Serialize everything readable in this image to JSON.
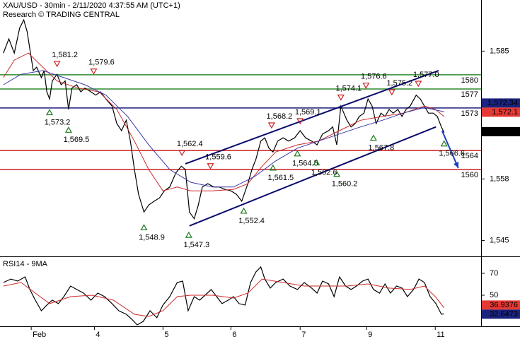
{
  "chart_data": [
    {
      "type": "line",
      "title": "XAU/USD - 30min - 2/11/2020 4:37:55 AM (UTC+1)",
      "subtitle": "Research © TRADING CENTRAL",
      "xlim": [
        -0.46,
        6.625
      ],
      "ylim": [
        1541.8,
        1595.8
      ],
      "yticks": [
        {
          "value": 1545,
          "label": "1,545"
        },
        {
          "value": 1558,
          "label": "1,558"
        },
        {
          "value": 1585,
          "label": "1,585"
        }
      ],
      "series": [
        {
          "color": "#000000",
          "x": [
            -0.41,
            -0.33,
            -0.25,
            -0.17,
            -0.11,
            -0.06,
            -0.02,
            0.03,
            0.08,
            0.15,
            0.19,
            0.23,
            0.27,
            0.31,
            0.38,
            0.44,
            0.5,
            0.55,
            0.6,
            0.67,
            0.73,
            0.79,
            0.88,
            0.95,
            1.02,
            1.1,
            1.19,
            1.26,
            1.33,
            1.4,
            1.46,
            1.52,
            1.58,
            1.66,
            1.73,
            1.81,
            1.89,
            1.96,
            2.04,
            2.13,
            2.21,
            2.27,
            2.33,
            2.4,
            2.46,
            2.52,
            2.6,
            2.69,
            2.77,
            2.85,
            2.94,
            3.02,
            3.1,
            3.19,
            3.25,
            3.31,
            3.38,
            3.44,
            3.5,
            3.56,
            3.63,
            3.71,
            3.79,
            3.88,
            3.96,
            4.04,
            4.13,
            4.21,
            4.29,
            4.38,
            4.44,
            4.5,
            4.56,
            4.65,
            4.71,
            4.77,
            4.83,
            4.9,
            4.96,
            5.02,
            5.08,
            5.15,
            5.21,
            5.27,
            5.33,
            5.4,
            5.46,
            5.52,
            5.58,
            5.67,
            5.73,
            5.79,
            5.85,
            5.92,
            5.98,
            6.04,
            6.08
          ],
          "values": [
            1584.6,
            1587.6,
            1584.6,
            1589.9,
            1591.6,
            1589.1,
            1585.4,
            1580.9,
            1581.6,
            1579.4,
            1580.9,
            1576.4,
            1574.9,
            1578.7,
            1580.1,
            1577.9,
            1578.7,
            1572.7,
            1577.2,
            1577.9,
            1576.4,
            1577.2,
            1576.4,
            1575.7,
            1576.4,
            1574.9,
            1573.4,
            1569.7,
            1568.2,
            1570.4,
            1566.0,
            1560.0,
            1554.8,
            1551.0,
            1552.5,
            1553.3,
            1554.0,
            1555.5,
            1556.3,
            1559.3,
            1560.7,
            1560.0,
            1551.0,
            1549.6,
            1552.5,
            1556.3,
            1557.0,
            1556.3,
            1556.3,
            1555.8,
            1555.5,
            1554.8,
            1553.3,
            1557.0,
            1560.0,
            1562.2,
            1566.0,
            1566.7,
            1564.5,
            1563.7,
            1566.0,
            1566.7,
            1566.0,
            1566.7,
            1568.2,
            1566.7,
            1566.0,
            1565.2,
            1567.5,
            1568.2,
            1569.0,
            1565.2,
            1573.4,
            1570.4,
            1569.0,
            1569.7,
            1571.2,
            1571.9,
            1574.9,
            1573.4,
            1569.7,
            1571.9,
            1571.2,
            1572.7,
            1571.9,
            1572.7,
            1571.2,
            1572.7,
            1573.4,
            1575.7,
            1574.9,
            1573.4,
            1571.9,
            1571.9,
            1571.2,
            1569.0,
            1567.8
          ]
        },
        {
          "color": "#cc2a2a",
          "x": [
            -0.41,
            -0.25,
            -0.04,
            0.17,
            0.38,
            0.69,
            1.0,
            1.26,
            1.52,
            1.73,
            1.94,
            2.15,
            2.35,
            2.67,
            2.98,
            3.19,
            3.4,
            3.6,
            3.92,
            4.23,
            4.54,
            4.85,
            5.17,
            5.48,
            5.79,
            5.95,
            6.08
          ],
          "values": [
            1579.4,
            1583.1,
            1584.6,
            1581.6,
            1578.7,
            1577.2,
            1576.4,
            1572.7,
            1566.0,
            1560.0,
            1555.5,
            1556.3,
            1555.5,
            1555.5,
            1555.8,
            1557.0,
            1560.7,
            1563.7,
            1565.2,
            1566.0,
            1568.2,
            1570.4,
            1571.2,
            1571.9,
            1573.4,
            1572.7,
            1571.2
          ]
        },
        {
          "color": "#3a3aa8",
          "x": [
            -0.41,
            -0.15,
            0.17,
            0.48,
            0.79,
            1.1,
            1.42,
            1.73,
            2.04,
            2.35,
            2.67,
            2.98,
            3.29,
            3.6,
            3.92,
            4.23,
            4.54,
            4.85,
            5.17,
            5.48,
            5.79,
            6.08
          ],
          "values": [
            1577.9,
            1580.1,
            1580.9,
            1579.4,
            1577.9,
            1575.7,
            1571.2,
            1565.2,
            1560.0,
            1557.3,
            1556.3,
            1556.3,
            1558.5,
            1561.8,
            1564.5,
            1566.0,
            1567.5,
            1569.0,
            1570.4,
            1571.9,
            1573.1,
            1572.2
          ]
        }
      ],
      "levels": [
        {
          "value": 1580,
          "color": "#2e8b2e"
        },
        {
          "value": 1577,
          "color": "#2e8b2e"
        },
        {
          "value": 1573,
          "color": "#1a1a7a"
        },
        {
          "value": 1564,
          "color": "#cc2222"
        },
        {
          "value": 1560,
          "color": "#cc2222"
        }
      ],
      "trendlines": [
        {
          "x": [
            2.27,
            6.0
          ],
          "values": [
            1561.2,
            1580.9
          ],
          "color": "#0a0a6e"
        },
        {
          "x": [
            2.33,
            5.96
          ],
          "values": [
            1548.1,
            1569.0
          ],
          "color": "#0a0a6e"
        },
        {
          "x": [
            6.05,
            6.29
          ],
          "values": [
            1568.2,
            1560.3
          ],
          "color": "#1f3fbf",
          "arrow": true
        }
      ],
      "pivots": [
        {
          "x": 0.38,
          "value": 1581.2,
          "label": "1,581.2",
          "dir": "high"
        },
        {
          "x": 0.92,
          "value": 1579.6,
          "label": "1,579.6",
          "dir": "high"
        },
        {
          "x": 0.27,
          "value": 1573.2,
          "label": "1,573.2",
          "dir": "low"
        },
        {
          "x": 0.55,
          "value": 1569.5,
          "label": "1,569.5",
          "dir": "low"
        },
        {
          "x": 1.66,
          "value": 1548.9,
          "label": "1,548.9",
          "dir": "low"
        },
        {
          "x": 2.22,
          "value": 1562.4,
          "label": "1,562.4",
          "dir": "high"
        },
        {
          "x": 2.64,
          "value": 1559.6,
          "label": "1,559.6",
          "dir": "high"
        },
        {
          "x": 2.32,
          "value": 1547.3,
          "label": "1,547.3",
          "dir": "low"
        },
        {
          "x": 3.13,
          "value": 1552.4,
          "label": "1,552.4",
          "dir": "low"
        },
        {
          "x": 3.56,
          "value": 1561.5,
          "label": "1,561.5",
          "dir": "low"
        },
        {
          "x": 3.54,
          "value": 1568.2,
          "label": "1,568.2",
          "dir": "high"
        },
        {
          "x": 3.96,
          "value": 1569.1,
          "label": "1,569.1",
          "dir": "high"
        },
        {
          "x": 3.92,
          "value": 1564.5,
          "label": "1,564.5",
          "dir": "low"
        },
        {
          "x": 4.2,
          "value": 1562.6,
          "label": "1,562.6",
          "dir": "low"
        },
        {
          "x": 4.5,
          "value": 1560.2,
          "label": "1,560.2",
          "dir": "low"
        },
        {
          "x": 4.56,
          "value": 1574.1,
          "label": "1,574.1",
          "dir": "high"
        },
        {
          "x": 4.93,
          "value": 1576.6,
          "label": "1,576.6",
          "dir": "high"
        },
        {
          "x": 5.04,
          "value": 1567.8,
          "label": "1,567.8",
          "dir": "low"
        },
        {
          "x": 5.31,
          "value": 1575.2,
          "label": "1,575.2",
          "dir": "high"
        },
        {
          "x": 5.7,
          "value": 1577.0,
          "label": "1,577.0",
          "dir": "high"
        },
        {
          "x": 6.08,
          "value": 1566.6,
          "label": "1,566.6",
          "dir": "low"
        }
      ],
      "price_labels": [
        {
          "value": 1572.34,
          "label": "1,572.34",
          "color": "#1a237e"
        },
        {
          "value": 1572.1,
          "label": "1,572.1",
          "color": "#e53935"
        },
        {
          "value": 1568,
          "label": "1,568",
          "color": "#000000"
        }
      ]
    },
    {
      "type": "line",
      "title": "RSI14 - 9MA",
      "xlim": [
        -0.46,
        6.625
      ],
      "xticks": [
        {
          "value": 0,
          "label": "Feb"
        },
        {
          "value": 0.93,
          "label": "4"
        },
        {
          "value": 1.94,
          "label": "5"
        },
        {
          "value": 2.94,
          "label": "6"
        },
        {
          "value": 3.96,
          "label": "7"
        },
        {
          "value": 4.94,
          "label": "9"
        },
        {
          "value": 5.95,
          "label": "11"
        }
      ],
      "ylim": [
        21.6,
        84.2
      ],
      "yticks": [
        70,
        50
      ],
      "series": [
        {
          "color": "#000000",
          "x": [
            -0.41,
            -0.3,
            -0.2,
            -0.09,
            -0.02,
            0.06,
            0.15,
            0.23,
            0.31,
            0.4,
            0.48,
            0.58,
            0.67,
            0.77,
            0.88,
            0.98,
            1.08,
            1.19,
            1.29,
            1.4,
            1.48,
            1.56,
            1.65,
            1.75,
            1.85,
            1.94,
            2.04,
            2.15,
            2.23,
            2.31,
            2.4,
            2.48,
            2.56,
            2.65,
            2.73,
            2.81,
            2.9,
            2.98,
            3.06,
            3.15,
            3.23,
            3.31,
            3.38,
            3.44,
            3.52,
            3.6,
            3.71,
            3.81,
            3.92,
            4.02,
            4.13,
            4.21,
            4.29,
            4.38,
            4.46,
            4.54,
            4.63,
            4.71,
            4.79,
            4.88,
            4.96,
            5.04,
            5.13,
            5.21,
            5.29,
            5.38,
            5.46,
            5.54,
            5.63,
            5.71,
            5.79,
            5.875,
            5.96,
            6.04,
            6.08
          ],
          "values": [
            61.6,
            64.8,
            62.9,
            66.8,
            55.2,
            45.5,
            35.8,
            41.0,
            45.5,
            42.3,
            48.7,
            58.4,
            55.2,
            51.9,
            45.5,
            51.9,
            48.7,
            42.3,
            35.8,
            32.6,
            28.1,
            22.9,
            26.1,
            35.8,
            29.4,
            41.0,
            48.7,
            61.6,
            62.9,
            35.8,
            48.7,
            45.5,
            50.0,
            55.2,
            48.7,
            42.3,
            45.5,
            48.7,
            42.3,
            41.0,
            61.6,
            71.3,
            75.8,
            64.8,
            56.5,
            61.6,
            64.8,
            58.4,
            55.2,
            61.6,
            56.5,
            51.9,
            62.9,
            60.3,
            48.7,
            66.8,
            58.4,
            55.2,
            58.4,
            62.9,
            64.8,
            55.2,
            51.9,
            60.3,
            51.9,
            58.4,
            56.5,
            48.7,
            55.2,
            64.8,
            61.6,
            48.7,
            42.3,
            32.6,
            33.0
          ]
        },
        {
          "color": "#cc2a2a",
          "x": [
            -0.41,
            -0.15,
            0.06,
            0.27,
            0.58,
            0.9,
            1.21,
            1.52,
            1.73,
            1.94,
            2.15,
            2.35,
            2.67,
            2.98,
            3.19,
            3.4,
            3.71,
            4.02,
            4.33,
            4.65,
            4.96,
            5.27,
            5.58,
            5.79,
            5.95,
            6.08
          ],
          "values": [
            58.4,
            61.6,
            51.9,
            42.3,
            48.7,
            50.0,
            45.5,
            32.6,
            30.6,
            35.8,
            48.7,
            50.0,
            50.0,
            47.4,
            51.9,
            64.8,
            61.6,
            58.4,
            58.4,
            58.4,
            60.3,
            56.5,
            55.2,
            58.4,
            48.7,
            38.5
          ]
        }
      ],
      "price_labels": [
        {
          "value": 36.9376,
          "color": "#e53935"
        },
        {
          "value": 32.6473,
          "color": "#1a237e"
        }
      ]
    }
  ]
}
